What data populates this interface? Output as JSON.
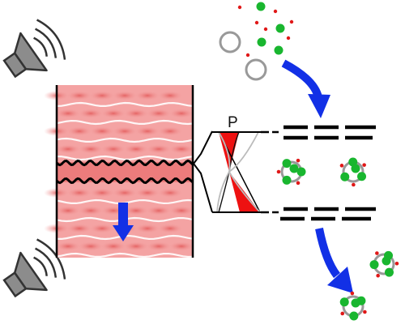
{
  "diagram": {
    "pressure_label": "P",
    "colors": {
      "tissue_base": "#f4a3a3",
      "tissue_band": "#e96f6f",
      "tissue_stripe": "#ffffff",
      "arrow": "#1230e6",
      "pressure_fill": "#ee1111",
      "particle_green": "#19b62f",
      "particle_red": "#e01818",
      "ring": "#999999",
      "line": "#000000",
      "speaker": "#8c8c8c"
    },
    "icons": [
      "speaker-icon",
      "down-arrow-icon",
      "curved-arrow-icon",
      "pressure-profile-icon",
      "particle-cluster-icon",
      "empty-ring-icon"
    ]
  }
}
